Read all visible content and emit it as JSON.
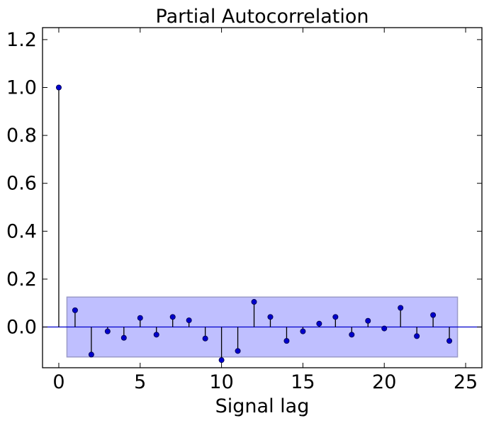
{
  "chart_data": {
    "type": "stem",
    "title": "Partial Autocorrelation",
    "xlabel": "Signal lag",
    "ylabel": "",
    "xlim": [
      -1,
      26
    ],
    "ylim": [
      -0.17,
      1.25
    ],
    "xticks": [
      0,
      5,
      10,
      15,
      20,
      25
    ],
    "yticks": [
      0.0,
      0.2,
      0.4,
      0.6,
      0.8,
      1.0,
      1.2
    ],
    "x": [
      0,
      1,
      2,
      3,
      4,
      5,
      6,
      7,
      8,
      9,
      10,
      11,
      12,
      13,
      14,
      15,
      16,
      17,
      18,
      19,
      20,
      21,
      22,
      23,
      24
    ],
    "values": [
      1.0,
      0.07,
      -0.115,
      -0.018,
      -0.045,
      0.038,
      -0.032,
      0.042,
      0.028,
      -0.048,
      -0.138,
      -0.1,
      0.105,
      0.042,
      -0.058,
      -0.018,
      0.014,
      0.042,
      -0.032,
      0.026,
      -0.006,
      0.08,
      -0.038,
      0.05,
      -0.058
    ],
    "confidence_band": {
      "x_range": [
        0.5,
        24.5
      ],
      "lower": -0.125,
      "upper": 0.125
    },
    "baseline": 0,
    "grid": false,
    "colors": {
      "marker": "#0000cc",
      "stem": "#000000",
      "band_fill": "#bfbfff",
      "band_edge": "#9a9ac8",
      "baseline": "#0000cc",
      "axes": "#000000"
    }
  }
}
